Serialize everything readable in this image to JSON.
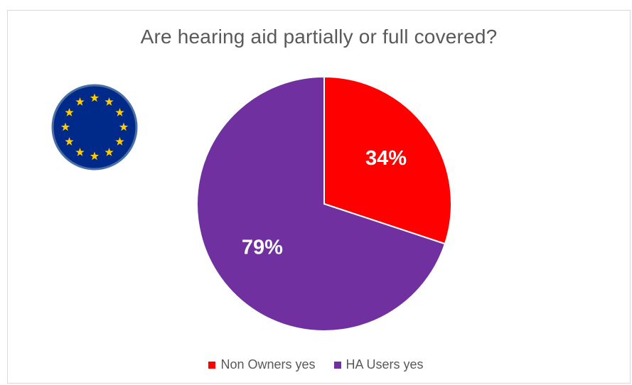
{
  "chart_data": {
    "type": "pie",
    "title": "Are hearing aid partially or full covered?",
    "series": [
      {
        "name": "Non Owners yes",
        "value": 34,
        "label": "34%",
        "color": "#ff0000"
      },
      {
        "name": "HA Users yes",
        "value": 79,
        "label": "79%",
        "color": "#7030a0"
      }
    ],
    "legend_position": "bottom"
  },
  "emblem": {
    "icon": "eu-flag-icon",
    "background": "#002a8a",
    "star_color": "#ffcc00",
    "border": "#4a6fa5"
  }
}
